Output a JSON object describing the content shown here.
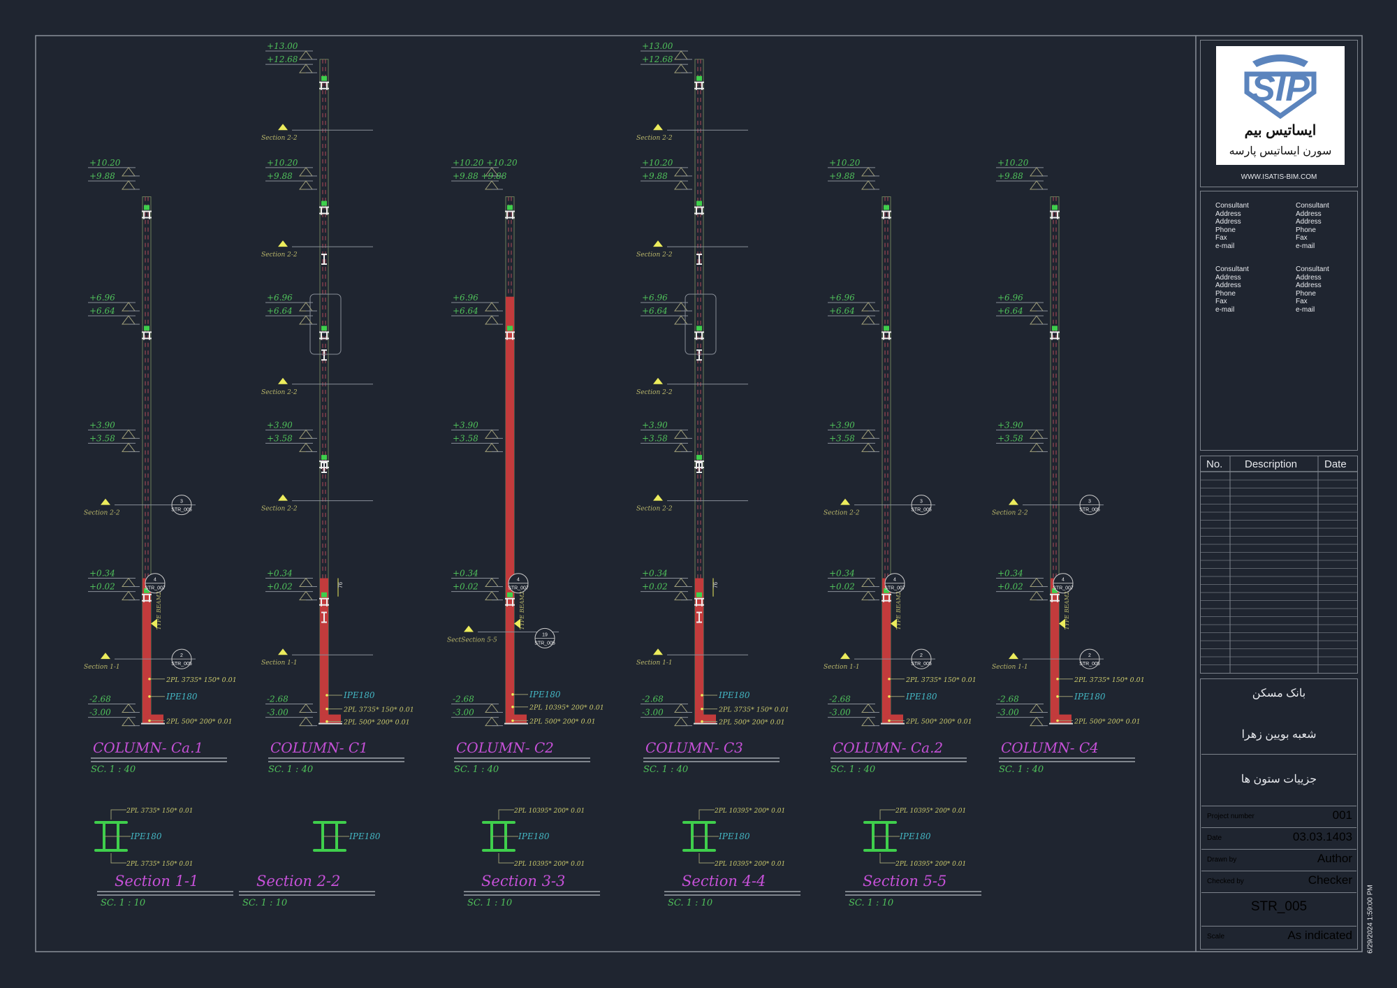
{
  "colors": {
    "bg": "#1f2530",
    "frame": "#8a9099",
    "level": "#4fc05a",
    "note": "#c9c86c",
    "ipe": "#44b7c4",
    "title": "#c651d8",
    "red": "#c23b3c",
    "steel": "#3fcf4c",
    "marker": "#ecec5c"
  },
  "columns": [
    {
      "name": "COLUMN-  Ca.1",
      "scale": "SC.   1  :  40",
      "top": 9.5,
      "red_top": 0.34,
      "levels": [
        {
          "t": "+10.20",
          "e": 10.2
        },
        {
          "t": "+9.88",
          "e": 9.88
        },
        {
          "t": "+6.96",
          "e": 6.96
        },
        {
          "t": "+6.64",
          "e": 6.64
        },
        {
          "t": "+3.90",
          "e": 3.9
        },
        {
          "t": "+3.58",
          "e": 3.58
        },
        {
          "t": "+0.34",
          "e": 0.34
        },
        {
          "t": "+0.02",
          "e": 0.02
        },
        {
          "t": "-2.68",
          "e": -2.68
        },
        {
          "t": "-3.00",
          "e": -3.0
        }
      ],
      "splices": [
        9.2,
        6.3,
        0.0
      ],
      "ibeams": [],
      "sections": [
        {
          "t": "Section  2-2",
          "e": 2.1
        },
        {
          "t": "Section  1-1",
          "e": -1.6
        }
      ],
      "callouts": [
        {
          "n": "3",
          "r": "STR_005",
          "e": 2.1
        },
        {
          "n": "4",
          "r": "STR_007",
          "e": 0.22
        },
        {
          "n": "2",
          "r": "STR_005",
          "e": -1.6
        }
      ],
      "beam_note": "TYPE BEAM2",
      "dim": "",
      "notes": [
        {
          "t": "2PL 3735* 150* 0.01",
          "k": "note",
          "e": -2.08
        },
        {
          "t": "IPE180",
          "k": "ipe",
          "e": -2.5
        },
        {
          "t": "2PL 500* 200* 0.01",
          "k": "note",
          "e": -3.08
        }
      ]
    },
    {
      "name": "COLUMN-  C1",
      "scale": "SC.   1  :  40",
      "top": 12.8,
      "red_top": 0.34,
      "levels": [
        {
          "t": "+13.00",
          "e": 13.0
        },
        {
          "t": "+12.68",
          "e": 12.68
        },
        {
          "t": "+10.20",
          "e": 10.2
        },
        {
          "t": "+9.88",
          "e": 9.88
        },
        {
          "t": "+6.96",
          "e": 6.96
        },
        {
          "t": "+6.64",
          "e": 6.64
        },
        {
          "t": "+3.90",
          "e": 3.9
        },
        {
          "t": "+3.58",
          "e": 3.58
        },
        {
          "t": "+0.34",
          "e": 0.34
        },
        {
          "t": "+0.02",
          "e": 0.02
        },
        {
          "t": "-2.68",
          "e": -2.68
        },
        {
          "t": "-3.00",
          "e": -3.0
        }
      ],
      "splices": [
        12.3,
        9.3,
        6.3,
        3.2,
        -0.1
      ],
      "ibeams": [
        8.0,
        5.7,
        3.0,
        -0.6
      ],
      "sections": [
        {
          "t": "Section  2-2",
          "e": 11.1
        },
        {
          "t": "Section  2-2",
          "e": 8.3
        },
        {
          "t": "Section  2-2",
          "e": 5.0
        },
        {
          "t": "Section  2-2",
          "e": 2.2
        },
        {
          "t": "Section  1-1",
          "e": -1.5
        }
      ],
      "callouts": [],
      "beam_note": "",
      "dim": "76",
      "notes": [
        {
          "t": "IPE180",
          "k": "ipe",
          "e": -2.47
        },
        {
          "t": "2PL 3735* 150* 0.01",
          "k": "note",
          "e": -2.8
        },
        {
          "t": "2PL 500* 200* 0.01",
          "k": "note",
          "e": -3.1
        }
      ]
    },
    {
      "name": "COLUMN-  C2",
      "scale": "SC.   1  :  40",
      "top": 9.5,
      "red_top": 7.1,
      "levels": [
        {
          "t": "+10.20  +10.20",
          "e": 10.2
        },
        {
          "t": "+9.88  +9.88",
          "e": 9.88
        },
        {
          "t": "+6.96",
          "e": 6.96
        },
        {
          "t": "+6.64",
          "e": 6.64
        },
        {
          "t": "+3.90",
          "e": 3.9
        },
        {
          "t": "+3.58",
          "e": 3.58
        },
        {
          "t": "+0.34",
          "e": 0.34
        },
        {
          "t": "+0.02",
          "e": 0.02
        },
        {
          "t": "-2.68",
          "e": -2.68
        },
        {
          "t": "-3.00",
          "e": -3.0
        }
      ],
      "splices": [
        9.2,
        6.3,
        -0.1
      ],
      "ibeams": [],
      "sections": [
        {
          "t": "SectSection  5-5",
          "e": -0.95
        }
      ],
      "callouts": [
        {
          "n": "4",
          "r": "STR_007",
          "e": 0.22
        },
        {
          "n": "19",
          "r": "STR_005",
          "e": -1.1
        }
      ],
      "beam_note": "TYPE BEAM2",
      "dim": "",
      "notes": [
        {
          "t": "IPE180",
          "k": "ipe",
          "e": -2.45
        },
        {
          "t": "2PL 10395* 200* 0.01",
          "k": "note",
          "e": -2.75
        },
        {
          "t": "2PL 500* 200* 0.01",
          "k": "note",
          "e": -3.08
        }
      ]
    },
    {
      "name": "COLUMN-  C3",
      "scale": "SC.   1  :  40",
      "top": 12.8,
      "red_top": 0.34,
      "levels": [
        {
          "t": "+13.00",
          "e": 13.0
        },
        {
          "t": "+12.68",
          "e": 12.68
        },
        {
          "t": "+10.20",
          "e": 10.2
        },
        {
          "t": "+9.88",
          "e": 9.88
        },
        {
          "t": "+6.96",
          "e": 6.96
        },
        {
          "t": "+6.64",
          "e": 6.64
        },
        {
          "t": "+3.90",
          "e": 3.9
        },
        {
          "t": "+3.58",
          "e": 3.58
        },
        {
          "t": "+0.34",
          "e": 0.34
        },
        {
          "t": "+0.02",
          "e": 0.02
        },
        {
          "t": "-2.68",
          "e": -2.68
        },
        {
          "t": "-3.00",
          "e": -3.0
        }
      ],
      "splices": [
        12.3,
        9.3,
        6.3,
        3.2,
        -0.1
      ],
      "ibeams": [
        8.0,
        5.7,
        3.0,
        -0.6
      ],
      "sections": [
        {
          "t": "Section  2-2",
          "e": 11.1
        },
        {
          "t": "Section  2-2",
          "e": 8.3
        },
        {
          "t": "Section  2-2",
          "e": 5.0
        },
        {
          "t": "Section  2-2",
          "e": 2.2
        },
        {
          "t": "Section  1-1",
          "e": -1.5
        }
      ],
      "callouts": [],
      "beam_note": "",
      "dim": "76",
      "notes": [
        {
          "t": "IPE180",
          "k": "ipe",
          "e": -2.47
        },
        {
          "t": "2PL 3735* 150* 0.01",
          "k": "note",
          "e": -2.8
        },
        {
          "t": "2PL 500* 200* 0.01",
          "k": "note",
          "e": -3.1
        }
      ]
    },
    {
      "name": "COLUMN-  Ca.2",
      "scale": "SC.   1  :  40",
      "top": 9.5,
      "red_top": 0.34,
      "levels": [
        {
          "t": "+10.20",
          "e": 10.2
        },
        {
          "t": "+9.88",
          "e": 9.88
        },
        {
          "t": "+6.96",
          "e": 6.96
        },
        {
          "t": "+6.64",
          "e": 6.64
        },
        {
          "t": "+3.90",
          "e": 3.9
        },
        {
          "t": "+3.58",
          "e": 3.58
        },
        {
          "t": "+0.34",
          "e": 0.34
        },
        {
          "t": "+0.02",
          "e": 0.02
        },
        {
          "t": "-2.68",
          "e": -2.68
        },
        {
          "t": "-3.00",
          "e": -3.0
        }
      ],
      "splices": [
        9.2,
        6.3,
        0.0
      ],
      "ibeams": [],
      "sections": [
        {
          "t": "Section  2-2",
          "e": 2.1
        },
        {
          "t": "Section  1-1",
          "e": -1.6
        }
      ],
      "callouts": [
        {
          "n": "3",
          "r": "STR_005",
          "e": 2.1
        },
        {
          "n": "4",
          "r": "STR_007",
          "e": 0.22
        },
        {
          "n": "2",
          "r": "STR_005",
          "e": -1.6
        }
      ],
      "beam_note": "TYPE BEAM2",
      "dim": "",
      "notes": [
        {
          "t": "2PL 3735* 150* 0.01",
          "k": "note",
          "e": -2.08
        },
        {
          "t": "IPE180",
          "k": "ipe",
          "e": -2.5
        },
        {
          "t": "2PL 500* 200* 0.01",
          "k": "note",
          "e": -3.08
        }
      ]
    },
    {
      "name": "COLUMN-  C4",
      "scale": "SC.   1  :  40",
      "top": 9.5,
      "red_top": 0.34,
      "levels": [
        {
          "t": "+10.20",
          "e": 10.2
        },
        {
          "t": "+9.88",
          "e": 9.88
        },
        {
          "t": "+6.96",
          "e": 6.96
        },
        {
          "t": "+6.64",
          "e": 6.64
        },
        {
          "t": "+3.90",
          "e": 3.9
        },
        {
          "t": "+3.58",
          "e": 3.58
        },
        {
          "t": "+0.34",
          "e": 0.34
        },
        {
          "t": "+0.02",
          "e": 0.02
        },
        {
          "t": "-2.68",
          "e": -2.68
        },
        {
          "t": "-3.00",
          "e": -3.0
        }
      ],
      "splices": [
        9.2,
        6.3,
        0.0
      ],
      "ibeams": [],
      "sections": [
        {
          "t": "Section  2-2",
          "e": 2.1
        },
        {
          "t": "Section  1-1",
          "e": -1.6
        }
      ],
      "callouts": [
        {
          "n": "3",
          "r": "STR_005",
          "e": 2.1
        },
        {
          "n": "4",
          "r": "STR_007",
          "e": 0.22
        },
        {
          "n": "2",
          "r": "STR_005",
          "e": -1.6
        }
      ],
      "beam_note": "TYPE BEAM2",
      "dim": "",
      "notes": [
        {
          "t": "2PL 3735* 150* 0.01",
          "k": "note",
          "e": -2.08
        },
        {
          "t": "IPE180",
          "k": "ipe",
          "e": -2.5
        },
        {
          "t": "2PL 500* 200* 0.01",
          "k": "note",
          "e": -3.08
        }
      ]
    }
  ],
  "sections": [
    {
      "name": "Section  1-1",
      "scale": "SC.    1  :  10",
      "top": "2PL 3735* 150* 0.01",
      "mid": "IPE180",
      "bottom": "2PL 3735* 150* 0.01"
    },
    {
      "name": "Section  2-2",
      "scale": "SC.    1  :  10",
      "top": "",
      "mid": "IPE180",
      "bottom": ""
    },
    {
      "name": "Section  3-3",
      "scale": "SC.    1  :  10",
      "top": "2PL 10395* 200* 0.01",
      "mid": "IPE180",
      "bottom": "2PL 10395* 200* 0.01"
    },
    {
      "name": "Section  4-4",
      "scale": "SC.    1  :  10",
      "top": "2PL 10395* 200* 0.01",
      "mid": "IPE180",
      "bottom": "2PL 10395* 200* 0.01"
    },
    {
      "name": "Section  5-5",
      "scale": "SC.    1  :  10",
      "top": "2PL 10395* 200* 0.01",
      "mid": "IPE180",
      "bottom": "2PL 10395* 200* 0.01"
    }
  ],
  "title_block": {
    "logo_text": "SIP",
    "logo_fa_1": "ایساتیس بیم",
    "logo_fa_2": "سورن ایساتیس پارسه",
    "website": "WWW.ISATIS-BIM.COM",
    "consultant_lines": [
      "Consultant",
      "Address",
      "Address",
      "Phone",
      "Fax",
      "e-mail"
    ],
    "revision_headers": {
      "no": "No.",
      "description": "Description",
      "date": "Date"
    },
    "client": "بانک مسکن",
    "project": "شعبه بویین زهرا",
    "sheet_title": "جزییات ستون ها",
    "project_number_label": "Project number",
    "project_number": "001",
    "date_label": "Date",
    "date": "03.03.1403",
    "drawn_by_label": "Drawn by",
    "drawn_by": "Author",
    "checked_by_label": "Checked by",
    "checked_by": "Checker",
    "sheet_number": "STR_005",
    "scale_label": "Scale",
    "scale": "As indicated",
    "timestamp": "6/29/2024 1:59:00 PM"
  }
}
